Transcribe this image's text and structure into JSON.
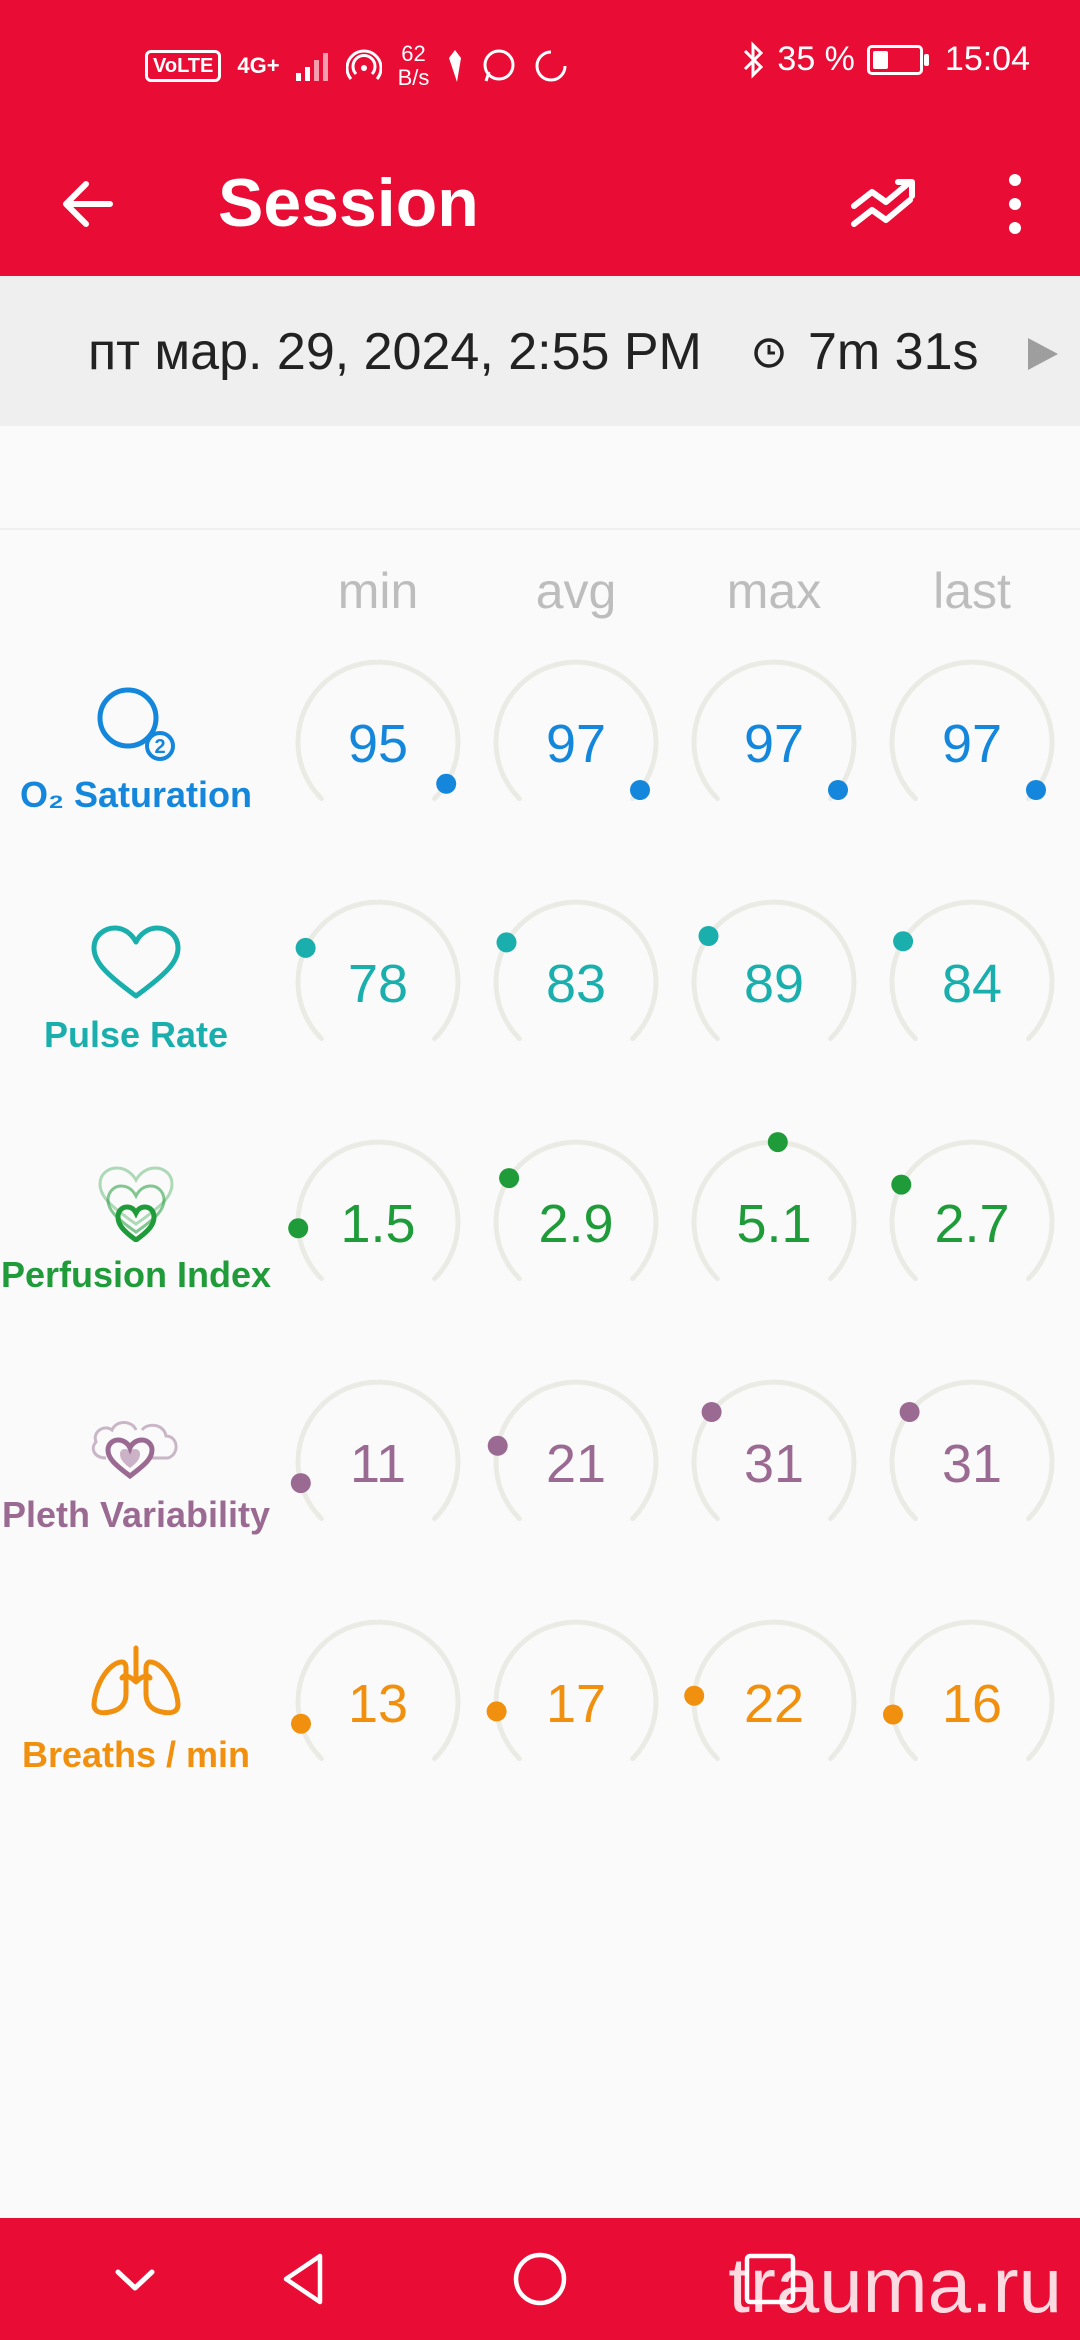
{
  "status_bar": {
    "volte": "VoLTE",
    "network": "4G+",
    "speed_value": "62",
    "speed_unit": "B/s",
    "battery": "35 %",
    "time": "15:04"
  },
  "app_bar": {
    "title": "Session"
  },
  "session": {
    "date": "пт мар. 29, 2024, 2:55 PM",
    "duration": "7m 31s"
  },
  "columns": [
    "min",
    "avg",
    "max",
    "last"
  ],
  "metrics": [
    {
      "label": "O₂ Saturation",
      "icon": "o2-saturation-icon",
      "color": "#1487dc",
      "range": [
        0,
        100
      ],
      "values": [
        "95",
        "97",
        "97",
        "97"
      ]
    },
    {
      "label": "Pulse Rate",
      "icon": "heart-icon",
      "color": "#1aafad",
      "range": [
        0,
        300
      ],
      "values": [
        "78",
        "83",
        "89",
        "84"
      ]
    },
    {
      "label": "Perfusion Index",
      "icon": "perfusion-icon",
      "color": "#1f9b3a",
      "range": [
        0,
        10
      ],
      "values": [
        "1.5",
        "2.9",
        "5.1",
        "2.7"
      ]
    },
    {
      "label": "Pleth Variability",
      "icon": "pleth-variability-icon",
      "color": "#9b6a93",
      "range": [
        0,
        100
      ],
      "values": [
        "11",
        "21",
        "31",
        "31"
      ]
    },
    {
      "label": "Breaths / min",
      "icon": "lungs-icon",
      "color": "#f0900e",
      "range": [
        0,
        120
      ],
      "values": [
        "13",
        "17",
        "22",
        "16"
      ]
    }
  ],
  "watermark": "trauma.ru",
  "colors": {
    "primary": "#e90c35",
    "track": "#ebebe6"
  }
}
